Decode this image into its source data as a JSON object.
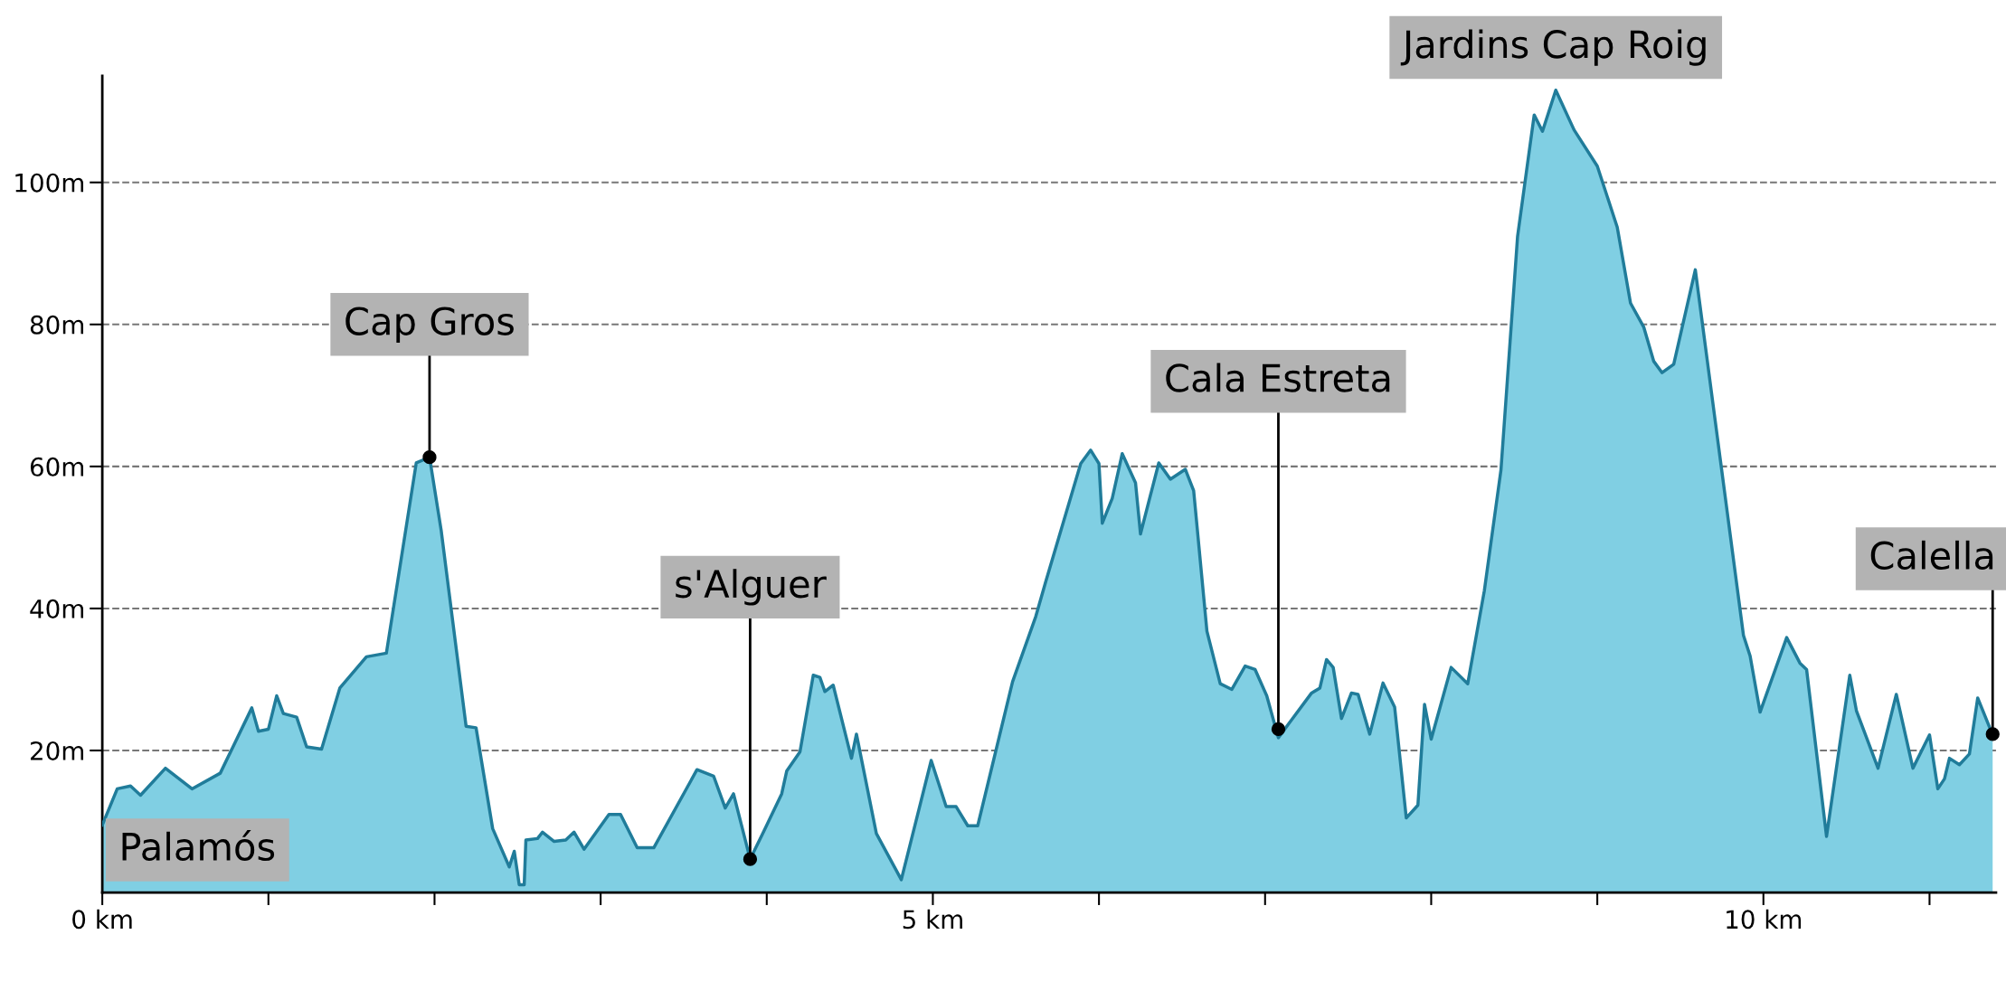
{
  "chart_data": {
    "type": "area",
    "x": [
      0,
      0.09,
      0.17,
      0.23,
      0.38,
      0.54,
      0.71,
      0.9,
      0.94,
      1.0,
      1.05,
      1.09,
      1.17,
      1.23,
      1.32,
      1.43,
      1.59,
      1.71,
      1.89,
      1.97,
      2.04,
      2.19,
      2.25,
      2.35,
      2.45,
      2.48,
      2.51,
      2.54,
      2.55,
      2.62,
      2.65,
      2.72,
      2.79,
      2.84,
      2.9,
      3.05,
      3.12,
      3.22,
      3.32,
      3.58,
      3.68,
      3.75,
      3.8,
      3.9,
      3.98,
      4.09,
      4.12,
      4.2,
      4.28,
      4.32,
      4.35,
      4.4,
      4.51,
      4.54,
      4.66,
      4.81,
      4.99,
      5.08,
      5.14,
      5.21,
      5.27,
      5.48,
      5.62,
      5.68,
      5.89,
      5.95,
      6.0,
      6.02,
      6.08,
      6.14,
      6.22,
      6.25,
      6.36,
      6.43,
      6.52,
      6.57,
      6.65,
      6.73,
      6.8,
      6.88,
      6.94,
      7.01,
      7.08,
      7.15,
      7.28,
      7.33,
      7.37,
      7.41,
      7.46,
      7.52,
      7.56,
      7.63,
      7.71,
      7.78,
      7.85,
      7.92,
      7.96,
      8.0,
      8.12,
      8.22,
      8.32,
      8.42,
      8.52,
      8.62,
      8.67,
      8.75,
      8.86,
      9.0,
      9.12,
      9.2,
      9.28,
      9.34,
      9.39,
      9.46,
      9.59,
      9.88,
      9.92,
      9.98,
      10.14,
      10.22,
      10.26,
      10.38,
      10.52,
      10.56,
      10.69,
      10.8,
      10.9,
      11.0,
      11.05,
      11.09,
      11.12,
      11.18,
      11.24,
      11.29,
      11.38
    ],
    "series": [
      {
        "color": "#80cfe3",
        "values": [
          9.5,
          14.6,
          15,
          13.7,
          17.5,
          14.6,
          16.8,
          26,
          22.7,
          23,
          27.7,
          25.2,
          24.7,
          20.5,
          20.2,
          28.8,
          33.2,
          33.7,
          60.5,
          61.3,
          51,
          23.4,
          23.2,
          9,
          3.6,
          5.8,
          1.1,
          1.1,
          7.4,
          7.6,
          8.5,
          7.2,
          7.4,
          8.5,
          6.1,
          11,
          11,
          6.3,
          6.3,
          17.3,
          16.4,
          11.9,
          13.9,
          4.7,
          8.5,
          13.9,
          17.1,
          19.8,
          30.6,
          30.3,
          28.3,
          29.2,
          18.9,
          22.3,
          8.3,
          1.8,
          18.6,
          12.1,
          12.1,
          9.4,
          9.4,
          29.7,
          38.9,
          43.8,
          60.4,
          62.3,
          60.4,
          52,
          55.5,
          61.8,
          57.7,
          50.5,
          60.5,
          58.2,
          59.6,
          56.6,
          36.8,
          29.4,
          28.6,
          31.9,
          31.4,
          27.7,
          21.8,
          24,
          28.1,
          28.8,
          32.8,
          31.7,
          24.5,
          28.1,
          27.9,
          22.3,
          29.5,
          26.1,
          10.5,
          12.3,
          26.5,
          21.6,
          31.7,
          29.4,
          42.5,
          59.5,
          92.4,
          109.5,
          107.2,
          113,
          107.4,
          102.3,
          93.7,
          83,
          79.6,
          74.8,
          73.2,
          74.4,
          87.7,
          36.2,
          33.3,
          25.4,
          35.9,
          32.3,
          31.4,
          7.9,
          30.6,
          25.6,
          17.5,
          27.9,
          17.5,
          22.2,
          14.6,
          16,
          18.9,
          18,
          19.5,
          27.4,
          22.2
        ]
      }
    ],
    "xlim": [
      0,
      11.4
    ],
    "xticks": [
      {
        "value": 0,
        "label": "0 km"
      },
      {
        "value": 1,
        "label": null
      },
      {
        "value": 2,
        "label": null
      },
      {
        "value": 3,
        "label": null
      },
      {
        "value": 4,
        "label": null
      },
      {
        "value": 5,
        "label": "5 km"
      },
      {
        "value": 6,
        "label": null
      },
      {
        "value": 7,
        "label": null
      },
      {
        "value": 8,
        "label": null
      },
      {
        "value": 9,
        "label": null
      },
      {
        "value": 10,
        "label": "10 km"
      },
      {
        "value": 11,
        "label": null
      }
    ],
    "ylim": [
      0,
      115
    ],
    "yticks": [
      {
        "value": 20,
        "label": "20m"
      },
      {
        "value": 40,
        "label": "40m"
      },
      {
        "value": 60,
        "label": "60m"
      },
      {
        "value": 80,
        "label": "80m"
      },
      {
        "value": 100,
        "label": "100m"
      }
    ],
    "grid": "y",
    "line_style": "solid",
    "annotations": [
      {
        "text": "Palamós",
        "x": 0,
        "y": 9.5
      },
      {
        "text": "Cap Gros",
        "x": 1.97,
        "y": 61.3
      },
      {
        "text": "s'Alguer",
        "x": 3.9,
        "y": 4.7
      },
      {
        "text": "Cala Estreta",
        "x": 7.08,
        "y": 23
      },
      {
        "text": "Jardins Cap Roig",
        "x": 8.75,
        "y": 113
      },
      {
        "text": "Calella",
        "x": 11.38,
        "y": 22.3
      }
    ]
  }
}
